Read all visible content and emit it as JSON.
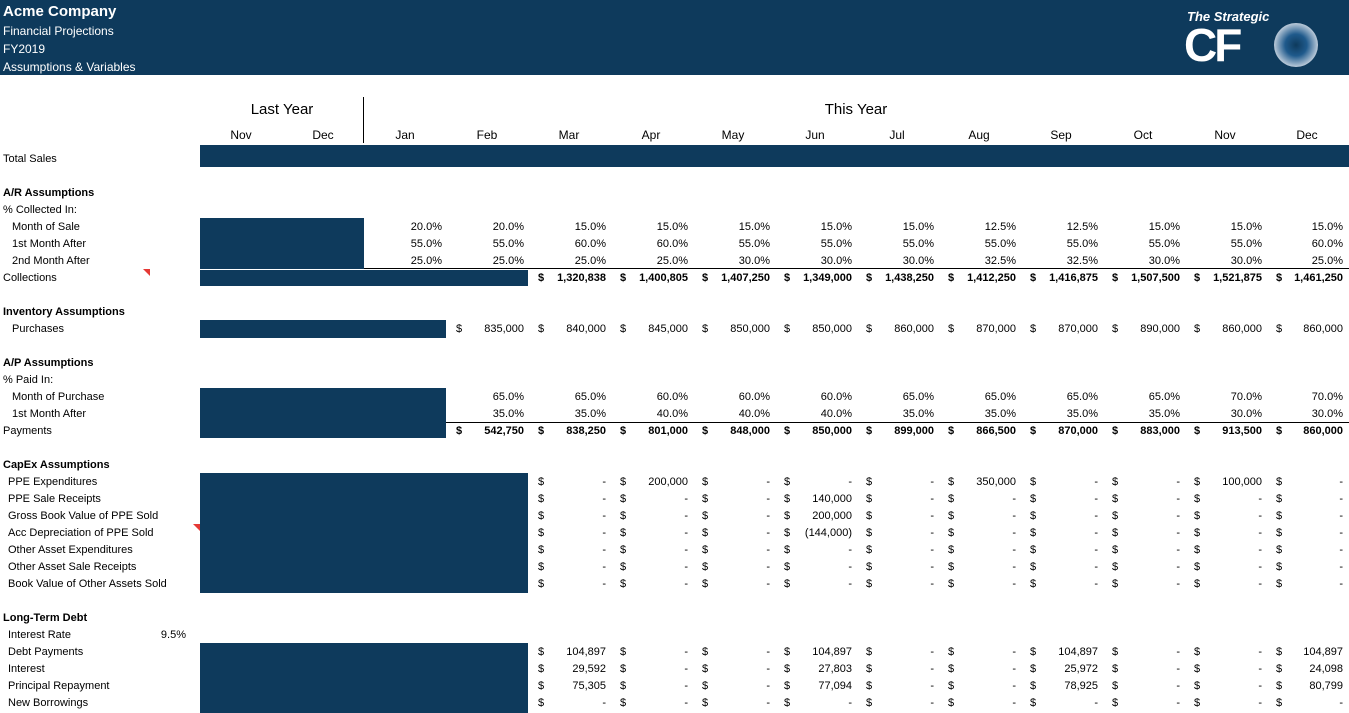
{
  "header": {
    "company": "Acme Company",
    "subtitle_1": "Financial Projections",
    "subtitle_2": "FY2019",
    "subtitle_3": "Assumptions & Variables",
    "logo_top": "The Strategic",
    "logo_main": "CF"
  },
  "periods": {
    "last_year_label": "Last Year",
    "this_year_label": "This Year",
    "months": [
      "Nov",
      "Dec",
      "Jan",
      "Feb",
      "Mar",
      "Apr",
      "May",
      "Jun",
      "Jul",
      "Aug",
      "Sep",
      "Oct",
      "Nov",
      "Dec"
    ]
  },
  "labels": {
    "total_sales": "Total Sales",
    "ar_title": "A/R Assumptions",
    "pct_collected": "% Collected In:",
    "month_of_sale": "Month of Sale",
    "first_month_after": "1st Month After",
    "second_month_after": "2nd Month After",
    "collections": "Collections",
    "inv_title": "Inventory Assumptions",
    "purchases": "Purchases",
    "ap_title": "A/P Assumptions",
    "pct_paid": "% Paid In:",
    "month_of_purchase": "Month of Purchase",
    "ap_first_month_after": "1st Month After",
    "payments": "Payments",
    "capex_title": "CapEx Assumptions",
    "ppe_exp": "PPE Expenditures",
    "ppe_sale": "PPE Sale Receipts",
    "gross_book": "Gross Book Value of PPE Sold",
    "acc_dep": "Acc Depreciation of PPE Sold",
    "other_exp": "Other Asset Expenditures",
    "other_sale": "Other Asset Sale Receipts",
    "book_other": "Book Value of Other Assets Sold",
    "ltd_title": "Long-Term Debt",
    "interest_rate": "Interest Rate",
    "interest_rate_value": "9.5%",
    "debt_payments": "Debt Payments",
    "interest": "Interest",
    "principal": "Principal Repayment",
    "new_borrowings": "New Borrowings"
  },
  "currency_symbol": "$",
  "ar": {
    "month_of_sale": [
      "20.0%",
      "20.0%",
      "15.0%",
      "15.0%",
      "15.0%",
      "15.0%",
      "15.0%",
      "12.5%",
      "12.5%",
      "15.0%",
      "15.0%",
      "15.0%"
    ],
    "first_month_after": [
      "55.0%",
      "55.0%",
      "60.0%",
      "60.0%",
      "55.0%",
      "55.0%",
      "55.0%",
      "55.0%",
      "55.0%",
      "55.0%",
      "55.0%",
      "60.0%"
    ],
    "second_month_after": [
      "25.0%",
      "25.0%",
      "25.0%",
      "25.0%",
      "30.0%",
      "30.0%",
      "30.0%",
      "32.5%",
      "32.5%",
      "30.0%",
      "30.0%",
      "25.0%"
    ],
    "collections": [
      "1,320,838",
      "1,400,805",
      "1,407,250",
      "1,349,000",
      "1,438,250",
      "1,412,250",
      "1,416,875",
      "1,507,500",
      "1,521,875",
      "1,461,250"
    ]
  },
  "inventory": {
    "purchases": [
      "835,000",
      "840,000",
      "845,000",
      "850,000",
      "850,000",
      "860,000",
      "870,000",
      "870,000",
      "890,000",
      "860,000",
      "860,000"
    ]
  },
  "ap": {
    "month_of_purchase": [
      "65.0%",
      "65.0%",
      "60.0%",
      "60.0%",
      "60.0%",
      "65.0%",
      "65.0%",
      "65.0%",
      "65.0%",
      "70.0%",
      "70.0%"
    ],
    "first_month_after": [
      "35.0%",
      "35.0%",
      "40.0%",
      "40.0%",
      "40.0%",
      "35.0%",
      "35.0%",
      "35.0%",
      "35.0%",
      "30.0%",
      "30.0%"
    ],
    "payments": [
      "542,750",
      "838,250",
      "801,000",
      "848,000",
      "850,000",
      "899,000",
      "866,500",
      "870,000",
      "883,000",
      "913,500",
      "860,000"
    ]
  },
  "capex": {
    "ppe_exp": [
      "-",
      "200,000",
      "-",
      "-",
      "-",
      "350,000",
      "-",
      "-",
      "100,000",
      "-"
    ],
    "ppe_sale": [
      "-",
      "-",
      "-",
      "140,000",
      "-",
      "-",
      "-",
      "-",
      "-",
      "-"
    ],
    "gross_book": [
      "-",
      "-",
      "-",
      "200,000",
      "-",
      "-",
      "-",
      "-",
      "-",
      "-"
    ],
    "acc_dep": [
      "-",
      "-",
      "-",
      "(144,000)",
      "-",
      "-",
      "-",
      "-",
      "-",
      "-"
    ],
    "other_exp": [
      "-",
      "-",
      "-",
      "-",
      "-",
      "-",
      "-",
      "-",
      "-",
      "-"
    ],
    "other_sale": [
      "-",
      "-",
      "-",
      "-",
      "-",
      "-",
      "-",
      "-",
      "-",
      "-"
    ],
    "book_other": [
      "-",
      "-",
      "-",
      "-",
      "-",
      "-",
      "-",
      "-",
      "-",
      "-"
    ]
  },
  "ltd": {
    "debt_payments": [
      "104,897",
      "-",
      "-",
      "104,897",
      "-",
      "-",
      "104,897",
      "-",
      "-",
      "104,897"
    ],
    "interest": [
      "29,592",
      "-",
      "-",
      "27,803",
      "-",
      "-",
      "25,972",
      "-",
      "-",
      "24,098"
    ],
    "principal": [
      "75,305",
      "-",
      "-",
      "77,094",
      "-",
      "-",
      "78,925",
      "-",
      "-",
      "80,799"
    ],
    "new_borrowings": [
      "-",
      "-",
      "-",
      "-",
      "-",
      "-",
      "-",
      "-",
      "-",
      "-"
    ]
  },
  "colors": {
    "navy": "#0e3a5c",
    "comment_marker": "#e53935"
  }
}
